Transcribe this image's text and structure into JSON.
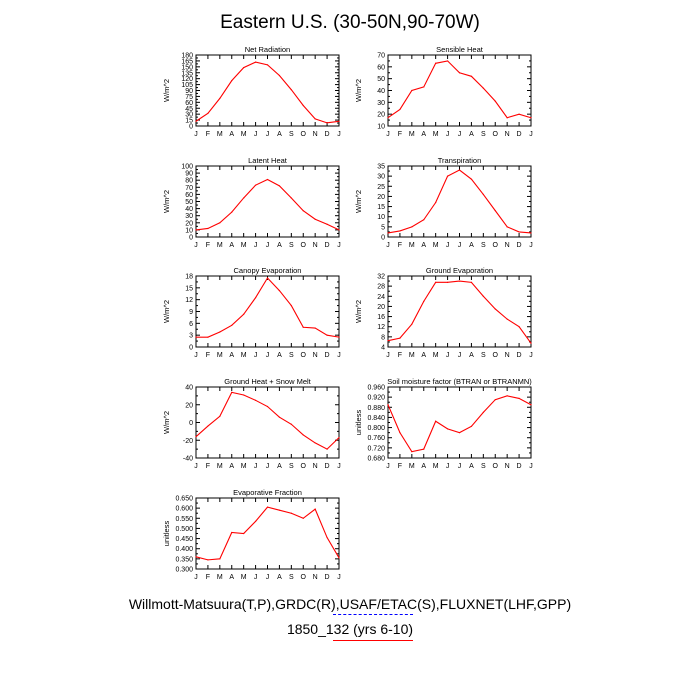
{
  "title": "Eastern U.S. (30-50N,90-70W)",
  "footer": {
    "line1": "Willmott-Matsuura(T,P),GRDC(R),USAF/ETAC(S),FLUXNET(LHF,GPP)",
    "line2": "1850_132 (yrs 6-10)",
    "line1_underline_color": "#0000ff",
    "line2_underline_color": "#ff0000"
  },
  "colors": {
    "series": "#ff0000",
    "axis": "#000000"
  },
  "chart_data": [
    {
      "type": "line",
      "title": "Net Radiation",
      "ylabel": "W/m^2",
      "x": [
        "J",
        "F",
        "M",
        "A",
        "M",
        "J",
        "J",
        "A",
        "S",
        "O",
        "N",
        "D",
        "J"
      ],
      "values": [
        12,
        32,
        70,
        115,
        148,
        162,
        155,
        128,
        92,
        52,
        18,
        8,
        12
      ],
      "ylim": [
        0,
        180
      ],
      "yticks": [
        "0",
        "15",
        "30",
        "45",
        "60",
        "75",
        "90",
        "105",
        "120",
        "135",
        "150",
        "165",
        "180"
      ],
      "ytick_values": [
        0,
        15,
        30,
        45,
        60,
        75,
        90,
        105,
        120,
        135,
        150,
        165,
        180
      ]
    },
    {
      "type": "line",
      "title": "Sensible Heat",
      "ylabel": "W/m^2",
      "x": [
        "J",
        "F",
        "M",
        "A",
        "M",
        "J",
        "J",
        "A",
        "S",
        "O",
        "N",
        "D",
        "J"
      ],
      "values": [
        17,
        24,
        40,
        43,
        63,
        65,
        55,
        52,
        42,
        31,
        17,
        20,
        17
      ],
      "ylim": [
        10,
        70
      ],
      "yticks": [
        "10",
        "20",
        "30",
        "40",
        "50",
        "60",
        "70"
      ],
      "ytick_values": [
        10,
        20,
        30,
        40,
        50,
        60,
        70
      ]
    },
    {
      "type": "line",
      "title": "Latent Heat",
      "ylabel": "W/m^2",
      "x": [
        "J",
        "F",
        "M",
        "A",
        "M",
        "J",
        "J",
        "A",
        "S",
        "O",
        "N",
        "D",
        "J"
      ],
      "values": [
        10,
        12,
        20,
        35,
        55,
        73,
        81,
        72,
        55,
        37,
        25,
        18,
        10
      ],
      "ylim": [
        0,
        100
      ],
      "yticks": [
        "0",
        "10",
        "20",
        "30",
        "40",
        "50",
        "60",
        "70",
        "80",
        "90",
        "100"
      ],
      "ytick_values": [
        0,
        10,
        20,
        30,
        40,
        50,
        60,
        70,
        80,
        90,
        100
      ]
    },
    {
      "type": "line",
      "title": "Transpiration",
      "ylabel": "W/m^2",
      "x": [
        "J",
        "F",
        "M",
        "A",
        "M",
        "J",
        "J",
        "A",
        "S",
        "O",
        "N",
        "D",
        "J"
      ],
      "values": [
        2,
        3,
        5,
        8.5,
        17,
        30,
        33,
        28.5,
        21,
        13,
        5,
        2.5,
        2
      ],
      "ylim": [
        0,
        35
      ],
      "yticks": [
        "0",
        "5",
        "10",
        "15",
        "20",
        "25",
        "30",
        "35"
      ],
      "ytick_values": [
        0,
        5,
        10,
        15,
        20,
        25,
        30,
        35
      ]
    },
    {
      "type": "line",
      "title": "Canopy Evaporation",
      "ylabel": "W/m^2",
      "x": [
        "J",
        "F",
        "M",
        "A",
        "M",
        "J",
        "J",
        "A",
        "S",
        "O",
        "N",
        "D",
        "J"
      ],
      "values": [
        2.5,
        2.5,
        3.8,
        5.5,
        8.3,
        12.5,
        17.5,
        14.3,
        10.5,
        5,
        4.8,
        3,
        2.5
      ],
      "ylim": [
        0,
        18
      ],
      "yticks": [
        "0",
        "3",
        "6",
        "9",
        "12",
        "15",
        "18"
      ],
      "ytick_values": [
        0,
        3,
        6,
        9,
        12,
        15,
        18
      ]
    },
    {
      "type": "line",
      "title": "Ground Evaporation",
      "ylabel": "W/m^2",
      "x": [
        "J",
        "F",
        "M",
        "A",
        "M",
        "J",
        "J",
        "A",
        "S",
        "O",
        "N",
        "D",
        "J"
      ],
      "values": [
        6.5,
        7.5,
        13,
        22,
        29.5,
        29.5,
        30,
        29.5,
        24,
        19,
        15,
        12,
        5.5
      ],
      "ylim": [
        4,
        32
      ],
      "yticks": [
        "4",
        "8",
        "12",
        "16",
        "20",
        "24",
        "28",
        "32"
      ],
      "ytick_values": [
        4,
        8,
        12,
        16,
        20,
        24,
        28,
        32
      ]
    },
    {
      "type": "line",
      "title": "Ground Heat + Snow Melt",
      "ylabel": "W/m^2",
      "x": [
        "J",
        "F",
        "M",
        "A",
        "M",
        "J",
        "J",
        "A",
        "S",
        "O",
        "N",
        "D",
        "J"
      ],
      "values": [
        -16,
        -4,
        7,
        34,
        31,
        25,
        18,
        6,
        -2,
        -14,
        -23,
        -30,
        -17
      ],
      "ylim": [
        -40,
        40
      ],
      "yticks": [
        "-40",
        "-20",
        "0",
        "20",
        "40"
      ],
      "ytick_values": [
        -40,
        -20,
        0,
        20,
        40
      ]
    },
    {
      "type": "line",
      "title": "Soil moisture factor (BTRAN or BTRANMN)",
      "ylabel": "unitless",
      "x": [
        "J",
        "F",
        "M",
        "A",
        "M",
        "J",
        "J",
        "A",
        "S",
        "O",
        "N",
        "D",
        "J"
      ],
      "values": [
        0.89,
        0.78,
        0.705,
        0.715,
        0.825,
        0.795,
        0.78,
        0.805,
        0.86,
        0.91,
        0.925,
        0.915,
        0.89
      ],
      "ylim": [
        0.68,
        0.96
      ],
      "yticks": [
        "0.680",
        "0.720",
        "0.760",
        "0.800",
        "0.840",
        "0.880",
        "0.920",
        "0.960"
      ],
      "ytick_values": [
        0.68,
        0.72,
        0.76,
        0.8,
        0.84,
        0.88,
        0.92,
        0.96
      ]
    },
    {
      "type": "line",
      "title": "Evaporative Fraction",
      "ylabel": "unitless",
      "x": [
        "J",
        "F",
        "M",
        "A",
        "M",
        "J",
        "J",
        "A",
        "S",
        "O",
        "N",
        "D",
        "J"
      ],
      "values": [
        0.36,
        0.345,
        0.35,
        0.48,
        0.475,
        0.535,
        0.605,
        0.59,
        0.575,
        0.55,
        0.595,
        0.455,
        0.355
      ],
      "ylim": [
        0.3,
        0.65
      ],
      "yticks": [
        "0.300",
        "0.350",
        "0.400",
        "0.450",
        "0.500",
        "0.550",
        "0.600",
        "0.650"
      ],
      "ytick_values": [
        0.3,
        0.35,
        0.4,
        0.45,
        0.5,
        0.55,
        0.6,
        0.65
      ]
    }
  ]
}
